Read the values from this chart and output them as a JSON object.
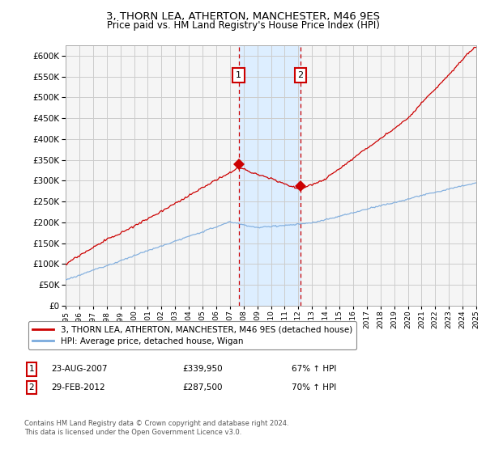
{
  "title": "3, THORN LEA, ATHERTON, MANCHESTER, M46 9ES",
  "subtitle": "Price paid vs. HM Land Registry's House Price Index (HPI)",
  "ylim": [
    0,
    625000
  ],
  "yticks": [
    0,
    50000,
    100000,
    150000,
    200000,
    250000,
    300000,
    350000,
    400000,
    450000,
    500000,
    550000,
    600000
  ],
  "x_start_year": 1995,
  "x_end_year": 2025,
  "sale1_year": 2007.64,
  "sale1_price": 339950,
  "sale2_year": 2012.16,
  "sale2_price": 287500,
  "sale1_date": "23-AUG-2007",
  "sale1_price_str": "£339,950",
  "sale1_hpi": "67% ↑ HPI",
  "sale2_date": "29-FEB-2012",
  "sale2_price_str": "£287,500",
  "sale2_hpi": "70% ↑ HPI",
  "legend1_label": "3, THORN LEA, ATHERTON, MANCHESTER, M46 9ES (detached house)",
  "legend2_label": "HPI: Average price, detached house, Wigan",
  "footnote": "Contains HM Land Registry data © Crown copyright and database right 2024.\nThis data is licensed under the Open Government Licence v3.0.",
  "hpi_color": "#7aaadd",
  "price_color": "#cc0000",
  "shade_color": "#ddeeff",
  "marker_box_color": "#cc0000",
  "grid_color": "#cccccc",
  "bg_color": "#f5f5f5"
}
